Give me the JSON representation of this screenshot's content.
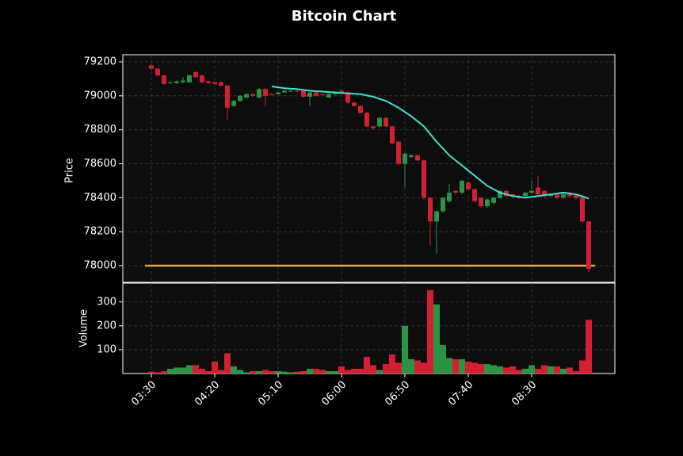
{
  "chart_data": {
    "type": "candlestick",
    "title": "Bitcoin Chart",
    "ylabel": "Price",
    "categories": [
      "03:30",
      null,
      null,
      null,
      null,
      null,
      null,
      null,
      null,
      null,
      "04:20",
      null,
      null,
      null,
      null,
      null,
      null,
      null,
      null,
      null,
      "05:10",
      null,
      null,
      null,
      null,
      null,
      null,
      null,
      null,
      null,
      "06:00",
      null,
      null,
      null,
      null,
      null,
      null,
      null,
      null,
      null,
      "06:50",
      null,
      null,
      null,
      null,
      null,
      null,
      null,
      null,
      null,
      "07:40",
      null,
      null,
      null,
      null,
      null,
      null,
      null,
      null,
      null,
      "08:30",
      null,
      null,
      null,
      null,
      null,
      null,
      null,
      null,
      null
    ],
    "open": [
      79180,
      79160,
      79120,
      79075,
      79075,
      79080,
      79080,
      79140,
      79120,
      79085,
      79080,
      79080,
      79060,
      78940,
      78970,
      78990,
      79010,
      78990,
      79040,
      79010,
      79010,
      79020,
      79025,
      79030,
      79030,
      78995,
      79020,
      79010,
      78990,
      79010,
      79030,
      79020,
      78960,
      78940,
      78900,
      78820,
      78820,
      78870,
      78820,
      78730,
      78600,
      78640,
      78650,
      78620,
      78400,
      78260,
      78320,
      78380,
      78440,
      78430,
      78490,
      78450,
      78400,
      78350,
      78370,
      78400,
      78440,
      78420,
      78410,
      78410,
      78430,
      78460,
      78440,
      78410,
      78420,
      78400,
      78430,
      78420,
      78400,
      78260
    ],
    "high": [
      79185,
      79165,
      79125,
      79085,
      79090,
      79110,
      79125,
      79145,
      79125,
      79090,
      79085,
      79085,
      79065,
      78975,
      79005,
      79015,
      79015,
      79045,
      79045,
      79015,
      79025,
      79035,
      79035,
      79035,
      79035,
      79025,
      79025,
      79015,
      79015,
      79025,
      79035,
      79025,
      78965,
      78945,
      78905,
      78825,
      78875,
      78875,
      78825,
      78735,
      78665,
      78660,
      78655,
      78625,
      78405,
      78325,
      78405,
      78480,
      78445,
      78505,
      78495,
      78455,
      78405,
      78395,
      78405,
      78445,
      78445,
      78425,
      78415,
      78435,
      78500,
      78530,
      78445,
      78425,
      78425,
      78425,
      78435,
      78425,
      78405,
      78265
    ],
    "low": [
      79150,
      79115,
      79065,
      79070,
      79070,
      79075,
      79075,
      79105,
      79075,
      79070,
      79065,
      79055,
      78860,
      78935,
      78965,
      78985,
      78995,
      78985,
      78940,
      79000,
      79005,
      79015,
      79020,
      79020,
      78990,
      78940,
      78995,
      79000,
      78985,
      79005,
      79015,
      78955,
      78935,
      78895,
      78815,
      78800,
      78815,
      78815,
      78715,
      78590,
      78460,
      78635,
      78615,
      78390,
      78120,
      78070,
      78310,
      78370,
      78420,
      78420,
      78440,
      78370,
      78340,
      78340,
      78360,
      78395,
      78405,
      78400,
      78395,
      78400,
      78425,
      78410,
      78400,
      78405,
      78390,
      78395,
      78400,
      78390,
      78255,
      77960
    ],
    "close": [
      79160,
      79120,
      79070,
      79080,
      79085,
      79090,
      79120,
      79110,
      79080,
      79075,
      79070,
      79060,
      78930,
      78970,
      79000,
      79010,
      79000,
      79040,
      79000,
      79005,
      79020,
      79030,
      79030,
      79025,
      78995,
      79020,
      79000,
      79005,
      79010,
      79020,
      79020,
      78960,
      78940,
      78900,
      78820,
      78810,
      78870,
      78820,
      78720,
      78600,
      78660,
      78650,
      78620,
      78400,
      78260,
      78320,
      78400,
      78430,
      78430,
      78500,
      78450,
      78380,
      78350,
      78390,
      78400,
      78440,
      78410,
      78410,
      78400,
      78430,
      78440,
      78420,
      78410,
      78420,
      78400,
      78420,
      78410,
      78400,
      78260,
      77980
    ],
    "up_color": "#2a9446",
    "down_color": "#d32030",
    "ma": {
      "color": "#40e0d0",
      "values": [
        null,
        null,
        null,
        null,
        null,
        null,
        null,
        null,
        null,
        null,
        null,
        null,
        null,
        null,
        null,
        null,
        null,
        null,
        null,
        79055,
        79050,
        79045,
        79042,
        79040,
        79035,
        79030,
        79027,
        79025,
        79022,
        79020,
        79017,
        79015,
        79012,
        79010,
        79002,
        78995,
        78982,
        78970,
        78950,
        78930,
        78905,
        78880,
        78850,
        78820,
        78775,
        78730,
        78690,
        78650,
        78620,
        78590,
        78560,
        78530,
        78500,
        78470,
        78450,
        78430,
        78420,
        78410,
        78405,
        78400,
        78405,
        78410,
        78415,
        78420,
        78425,
        78430,
        78425,
        78420,
        78408,
        78395
      ]
    },
    "hline": {
      "value": 78000,
      "color": "#f5a030"
    },
    "ylim": [
      77902,
      79242
    ],
    "yticks": [
      78000,
      78200,
      78400,
      78600,
      78800,
      79000,
      79200
    ],
    "grid": true,
    "volume": {
      "ylabel": "Volume",
      "ylim": [
        0,
        379
      ],
      "yticks": [
        100,
        200,
        300
      ],
      "values": [
        8,
        5,
        10,
        20,
        25,
        25,
        35,
        35,
        20,
        10,
        50,
        15,
        85,
        30,
        15,
        5,
        10,
        10,
        15,
        10,
        10,
        8,
        5,
        8,
        10,
        20,
        20,
        15,
        10,
        10,
        30,
        15,
        20,
        20,
        70,
        35,
        15,
        40,
        80,
        45,
        200,
        60,
        55,
        45,
        350,
        290,
        120,
        65,
        60,
        60,
        50,
        45,
        40,
        40,
        35,
        30,
        25,
        30,
        15,
        20,
        35,
        20,
        35,
        30,
        30,
        20,
        25,
        10,
        55,
        225
      ]
    }
  }
}
